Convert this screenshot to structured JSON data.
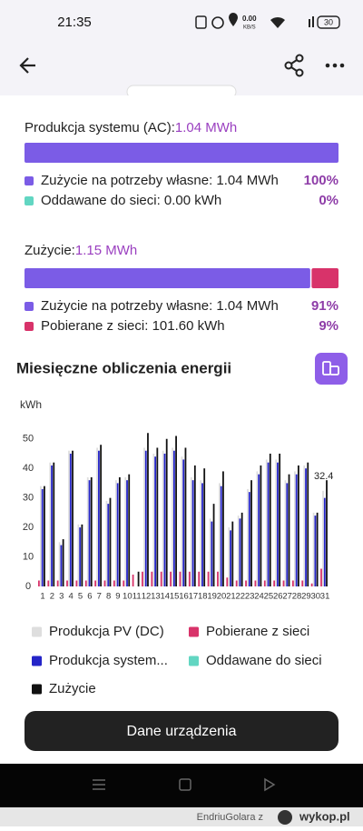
{
  "status_bar": {
    "time": "21:35",
    "speed": "0.00",
    "speed_unit": "KB/S",
    "battery": "30"
  },
  "production": {
    "label": "Produkcja systemu (AC):",
    "total": "1.04 MWh",
    "shares": {
      "values": [
        100,
        0
      ],
      "value_labels": [
        "100%",
        "0%"
      ],
      "colors": [
        "#7b5ce6",
        "#62d6c2"
      ]
    },
    "legend": [
      "Zużycie na potrzeby własne: 1.04 MWh",
      "Oddawane do sieci: 0.00 kWh"
    ]
  },
  "consumption": {
    "label": "Zużycie:",
    "total": "1.15 MWh",
    "shares": {
      "values": [
        91,
        9
      ],
      "value_labels": [
        "91%",
        "9%"
      ],
      "colors": [
        "#7b5ce6",
        "#d8336a"
      ]
    },
    "legend": [
      "Zużycie na potrzeby własne: 1.04 MWh",
      "Pobierane z sieci: 101.60 kWh"
    ]
  },
  "chart_data": {
    "type": "bar",
    "title": "Miesięczne obliczenia energii",
    "y_label": "kWh",
    "annotation": "32.4",
    "categories": [
      "1",
      "2",
      "3",
      "4",
      "5",
      "6",
      "7",
      "8",
      "9",
      "10",
      "11",
      "12",
      "13",
      "14",
      "15",
      "16",
      "17",
      "18",
      "19",
      "20",
      "21",
      "22",
      "23",
      "24",
      "25",
      "26",
      "27",
      "28",
      "29",
      "30",
      "31"
    ],
    "series": [
      {
        "name": "Produkcja PV (DC)",
        "color": "#dedede",
        "values": [
          34,
          42,
          15,
          46,
          21,
          37,
          47,
          29,
          36,
          37,
          0,
          47,
          45,
          46,
          47,
          44,
          37,
          36,
          23,
          35,
          20,
          24,
          33,
          39,
          43,
          43,
          36,
          39,
          41,
          25,
          32.4
        ]
      },
      {
        "name": "Produkcja system...",
        "color": "#2424c8",
        "values": [
          33,
          41,
          14,
          45,
          20,
          36,
          46,
          28,
          35,
          36,
          0,
          46,
          44,
          45,
          46,
          43,
          36,
          35,
          22,
          34,
          19,
          23,
          32,
          38,
          42,
          42,
          35,
          38,
          40,
          24,
          30
        ]
      },
      {
        "name": "Zużycie",
        "color": "#111111",
        "values": [
          34,
          42,
          16,
          46,
          21,
          37,
          48,
          30,
          37,
          38,
          5,
          52,
          47,
          50,
          51,
          47,
          41,
          40,
          28,
          39,
          22,
          25,
          36,
          41,
          45,
          45,
          38,
          41,
          42,
          25,
          36
        ]
      },
      {
        "name": "Pobierane z sieci",
        "color": "#d8336a",
        "values": [
          2,
          2,
          2,
          2,
          2,
          2,
          2,
          2,
          2,
          2,
          4,
          5,
          5,
          5,
          5,
          5,
          5,
          5,
          5,
          5,
          3,
          2,
          2,
          2,
          2,
          2,
          2,
          2,
          2,
          1,
          6
        ]
      },
      {
        "name": "Oddawane do sieci",
        "color": "#62d6c2",
        "values": [
          0,
          0,
          0,
          0,
          0,
          0,
          0,
          0,
          0,
          0,
          0,
          0,
          0,
          0,
          0,
          0,
          0,
          0,
          0,
          0,
          0,
          0,
          0,
          0,
          0,
          0,
          0,
          0,
          0,
          0,
          0
        ]
      }
    ],
    "ylim": [
      0,
      53
    ],
    "yticks": [
      0,
      10,
      20,
      30,
      40,
      50
    ]
  },
  "button": "Dane urządzenia",
  "watermark": {
    "user": "EndriuGolara z",
    "site": "wykop.pl"
  }
}
